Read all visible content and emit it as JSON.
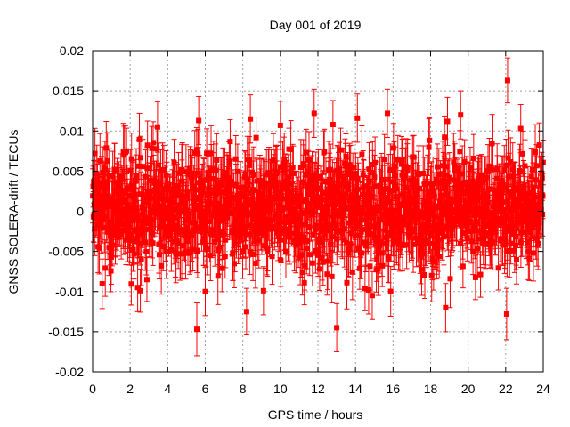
{
  "chart_data": {
    "type": "scatter",
    "title": "Day 001 of 2019",
    "xlabel": "GPS time / hours",
    "ylabel": "GNSS SOLERA-drift / TECUs",
    "xlim": [
      0,
      24
    ],
    "ylim": [
      -0.02,
      0.02
    ],
    "xticks": [
      0,
      2,
      4,
      6,
      8,
      10,
      12,
      14,
      16,
      18,
      20,
      22,
      24
    ],
    "yticks": [
      -0.02,
      -0.015,
      -0.01,
      -0.005,
      0,
      0.005,
      0.01,
      0.015,
      0.02
    ],
    "ytick_labels": [
      "-0.02",
      "-0.015",
      "-0.01",
      "-0.005",
      "0",
      "0.005",
      "0.01",
      "0.015",
      "0.02"
    ],
    "grid": true,
    "legend": "none",
    "series_color": "#ff0000",
    "marker": "square",
    "error_bars": true,
    "typical_error": 0.003,
    "typical_scatter_std": 0.004,
    "notable_points": [
      {
        "x": 22.1,
        "y": 0.0163,
        "err": 0.0028
      },
      {
        "x": 22.05,
        "y": -0.0128,
        "err": 0.0032
      },
      {
        "x": 5.55,
        "y": -0.0147,
        "err": 0.0033
      },
      {
        "x": 13.0,
        "y": -0.0145,
        "err": 0.003
      },
      {
        "x": 8.2,
        "y": -0.0125,
        "err": 0.0029
      },
      {
        "x": 18.8,
        "y": -0.012,
        "err": 0.003
      },
      {
        "x": 5.65,
        "y": 0.0113,
        "err": 0.003
      },
      {
        "x": 8.4,
        "y": 0.0115,
        "err": 0.003
      },
      {
        "x": 15.7,
        "y": 0.0122,
        "err": 0.003
      },
      {
        "x": 11.8,
        "y": 0.0122,
        "err": 0.003
      },
      {
        "x": 19.6,
        "y": 0.012,
        "err": 0.003
      },
      {
        "x": 18.9,
        "y": 0.0112,
        "err": 0.003
      },
      {
        "x": 14.1,
        "y": 0.0116,
        "err": 0.003
      },
      {
        "x": 9.1,
        "y": -0.0099,
        "err": 0.003
      },
      {
        "x": 6.0,
        "y": -0.01,
        "err": 0.003
      },
      {
        "x": 2.4,
        "y": -0.0095,
        "err": 0.003
      },
      {
        "x": 14.7,
        "y": -0.0098,
        "err": 0.003
      },
      {
        "x": 22.8,
        "y": 0.0103,
        "err": 0.003
      },
      {
        "x": 10.0,
        "y": 0.0107,
        "err": 0.003
      },
      {
        "x": 12.8,
        "y": 0.0108,
        "err": 0.003
      }
    ]
  }
}
